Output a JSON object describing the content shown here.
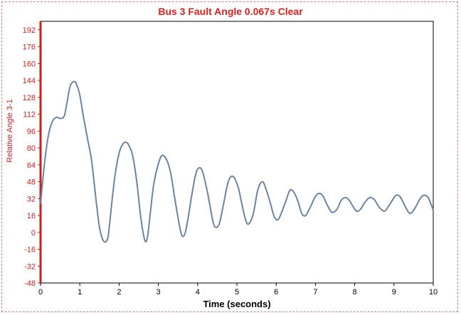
{
  "chart_data": {
    "type": "line",
    "title": "Bus 3 Fault Angle 0.067s Clear",
    "xlabel": "Time (seconds)",
    "ylabel": "Relative Angle 3-1",
    "xlim": [
      0,
      10
    ],
    "ylim": [
      -48,
      200
    ],
    "x_ticks": [
      0,
      1,
      2,
      3,
      4,
      5,
      6,
      7,
      8,
      9,
      10
    ],
    "y_ticks": [
      -48,
      -32,
      -16,
      0,
      16,
      32,
      48,
      64,
      80,
      96,
      112,
      128,
      144,
      160,
      176,
      192
    ],
    "grid": false,
    "legend": "none",
    "colors": {
      "line": "#6b84a3",
      "axis_accent": "#cc1f1a",
      "title": "#e0201c"
    },
    "series": [
      {
        "x": [
          0,
          0.1,
          0.2,
          0.3,
          0.4,
          0.5,
          0.6,
          0.67,
          0.75,
          0.85,
          0.92,
          1.0,
          1.1,
          1.2,
          1.3,
          1.4,
          1.5,
          1.6,
          1.7,
          1.75,
          1.82,
          1.9,
          2.0,
          2.1,
          2.2,
          2.28,
          2.35,
          2.45,
          2.55,
          2.65,
          2.72,
          2.8,
          2.88,
          3.0,
          3.1,
          3.22,
          3.32,
          3.45,
          3.58,
          3.67,
          3.75,
          3.85,
          3.95,
          4.03,
          4.12,
          4.25,
          4.38,
          4.45,
          4.55,
          4.65,
          4.78,
          4.9,
          5.03,
          5.12,
          5.22,
          5.3,
          5.42,
          5.53,
          5.65,
          5.75,
          5.85,
          5.95,
          6.05,
          6.15,
          6.25,
          6.35,
          6.45,
          6.55,
          6.65,
          6.75,
          6.87,
          7.0,
          7.1,
          7.2,
          7.3,
          7.42,
          7.55,
          7.65,
          7.75,
          7.85,
          7.95,
          8.05,
          8.15,
          8.25,
          8.38,
          8.5,
          8.62,
          8.75,
          8.85,
          8.95,
          9.05,
          9.15,
          9.28,
          9.4,
          9.52,
          9.65,
          9.75,
          9.87,
          10.0
        ],
        "y": [
          27,
          65,
          92,
          105,
          109,
          108,
          110,
          122,
          138,
          143,
          140,
          130,
          108,
          88,
          68,
          35,
          5,
          -8,
          -7,
          5,
          30,
          55,
          75,
          84,
          85,
          80,
          72,
          48,
          15,
          -7,
          -5,
          20,
          45,
          65,
          73,
          68,
          55,
          25,
          -1,
          -2,
          12,
          35,
          55,
          61,
          58,
          38,
          12,
          5,
          8,
          25,
          48,
          53,
          43,
          28,
          12,
          8,
          18,
          40,
          48,
          40,
          28,
          15,
          12,
          20,
          30,
          40,
          38,
          30,
          18,
          16,
          24,
          34,
          37,
          34,
          26,
          19,
          22,
          30,
          33,
          31,
          25,
          20,
          22,
          28,
          33,
          31,
          24,
          20,
          24,
          30,
          35,
          34,
          25,
          18,
          22,
          31,
          35,
          33,
          21
        ]
      }
    ]
  }
}
